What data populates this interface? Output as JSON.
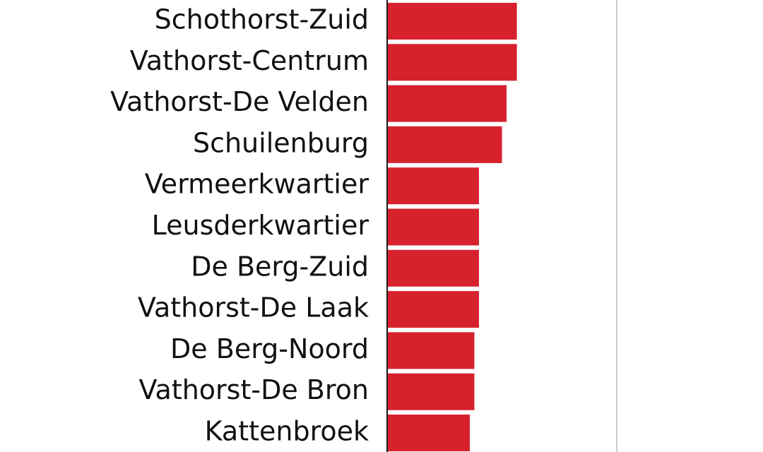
{
  "chart_data": {
    "type": "bar",
    "orientation": "horizontal",
    "categories": [
      "Schothorst-Zuid",
      "Vathorst-Centrum",
      "Vathorst-De Velden",
      "Schuilenburg",
      "Vermeerkwartier",
      "Leusderkwartier",
      "De Berg-Zuid",
      "Vathorst-De Laak",
      "De Berg-Noord",
      "Vathorst-De Bron",
      "Kattenbroek"
    ],
    "values": [
      0.565,
      0.565,
      0.52,
      0.5,
      0.4,
      0.4,
      0.4,
      0.4,
      0.38,
      0.38,
      0.36
    ],
    "xlim": [
      0,
      1
    ],
    "gridlines_x": [
      1
    ],
    "title": "",
    "xlabel": "",
    "ylabel": "",
    "colors": {
      "bar": "#d7222d",
      "axis": "#1a1a1a",
      "grid": "#cccccc",
      "text": "#111111"
    }
  }
}
